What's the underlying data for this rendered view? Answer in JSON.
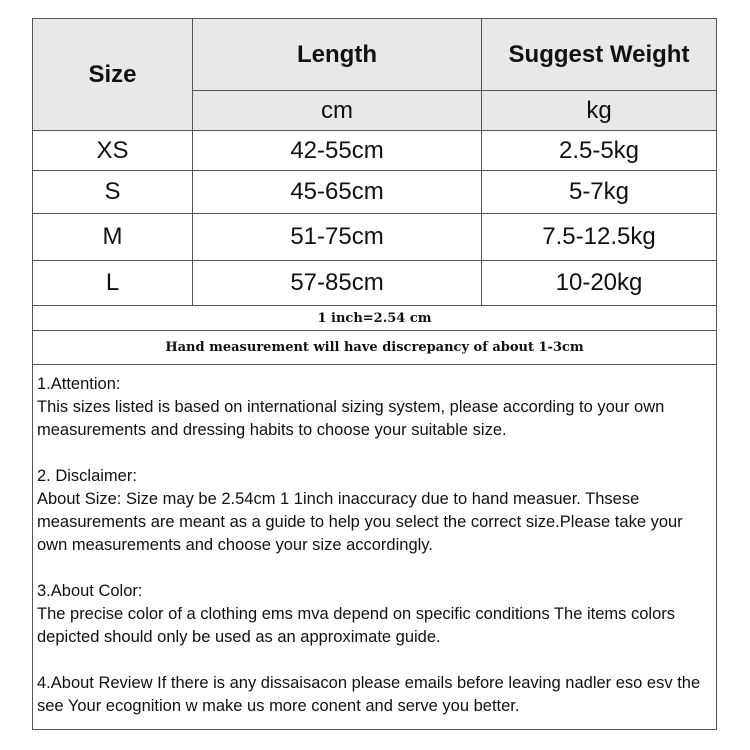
{
  "header": {
    "size": "Size",
    "length": "Length",
    "weight": "Suggest Weight",
    "length_unit": "cm",
    "weight_unit": "kg"
  },
  "rows": [
    {
      "size": "XS",
      "length": "42-55cm",
      "weight": "2.5-5kg"
    },
    {
      "size": "S",
      "length": "45-65cm",
      "weight": "5-7kg"
    },
    {
      "size": "M",
      "length": "51-75cm",
      "weight": "7.5-12.5kg"
    },
    {
      "size": "L",
      "length": "57-85cm",
      "weight": "10-20kg"
    }
  ],
  "conversion": "1 inch=2.54 cm",
  "discrepancy": "Hand measurement will have discrepancy of about 1-3cm",
  "notes": [
    {
      "title": "1.Attention:",
      "body": "This sizes listed is based on international sizing system, please according to your own measurements and dressing   habits to choose your suitable size."
    },
    {
      "title": "2. Disclaimer:",
      "body": "About Size: Size may be 2.54cm 1 1inch inaccuracy due to hand measuer. Thsese measurements are meant as a   guide to help you select the correct size.Please take your own measurements and choose your size accordingly."
    },
    {
      "title": "3.About Color:",
      "body": "The precise color of a clothing ems mva depend on specific conditions The items colors depicted should only be   used as an approximate guide."
    },
    {
      "title": "",
      "body": "4.About Review If there is any dissaisacon please emails before leaving nadler eso esv the see Your ecognition w   make us more conent and serve you better."
    }
  ]
}
